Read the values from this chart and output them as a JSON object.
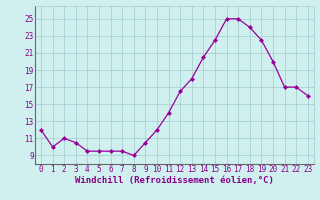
{
  "x": [
    0,
    1,
    2,
    3,
    4,
    5,
    6,
    7,
    8,
    9,
    10,
    11,
    12,
    13,
    14,
    15,
    16,
    17,
    18,
    19,
    20,
    21,
    22,
    23
  ],
  "y": [
    12,
    10,
    11,
    10.5,
    9.5,
    9.5,
    9.5,
    9.5,
    9.0,
    10.5,
    12.0,
    14.0,
    16.5,
    18.0,
    20.5,
    22.5,
    25.0,
    25.0,
    24.0,
    22.5,
    20.0,
    17.0,
    17.0,
    16.0
  ],
  "line_color": "#990099",
  "marker": "D",
  "marker_size": 2.0,
  "linewidth": 0.9,
  "bg_color": "#d0f0f0",
  "grid_color": "#a0cccc",
  "xlabel": "Windchill (Refroidissement éolien,°C)",
  "xlabel_fontsize": 6.5,
  "tick_color": "#880088",
  "tick_fontsize": 5.5,
  "ylim": [
    8.0,
    26.5
  ],
  "yticks": [
    9,
    11,
    13,
    15,
    17,
    19,
    21,
    23,
    25
  ],
  "xlim": [
    -0.5,
    23.5
  ],
  "xticks": [
    0,
    1,
    2,
    3,
    4,
    5,
    6,
    7,
    8,
    9,
    10,
    11,
    12,
    13,
    14,
    15,
    16,
    17,
    18,
    19,
    20,
    21,
    22,
    23
  ]
}
